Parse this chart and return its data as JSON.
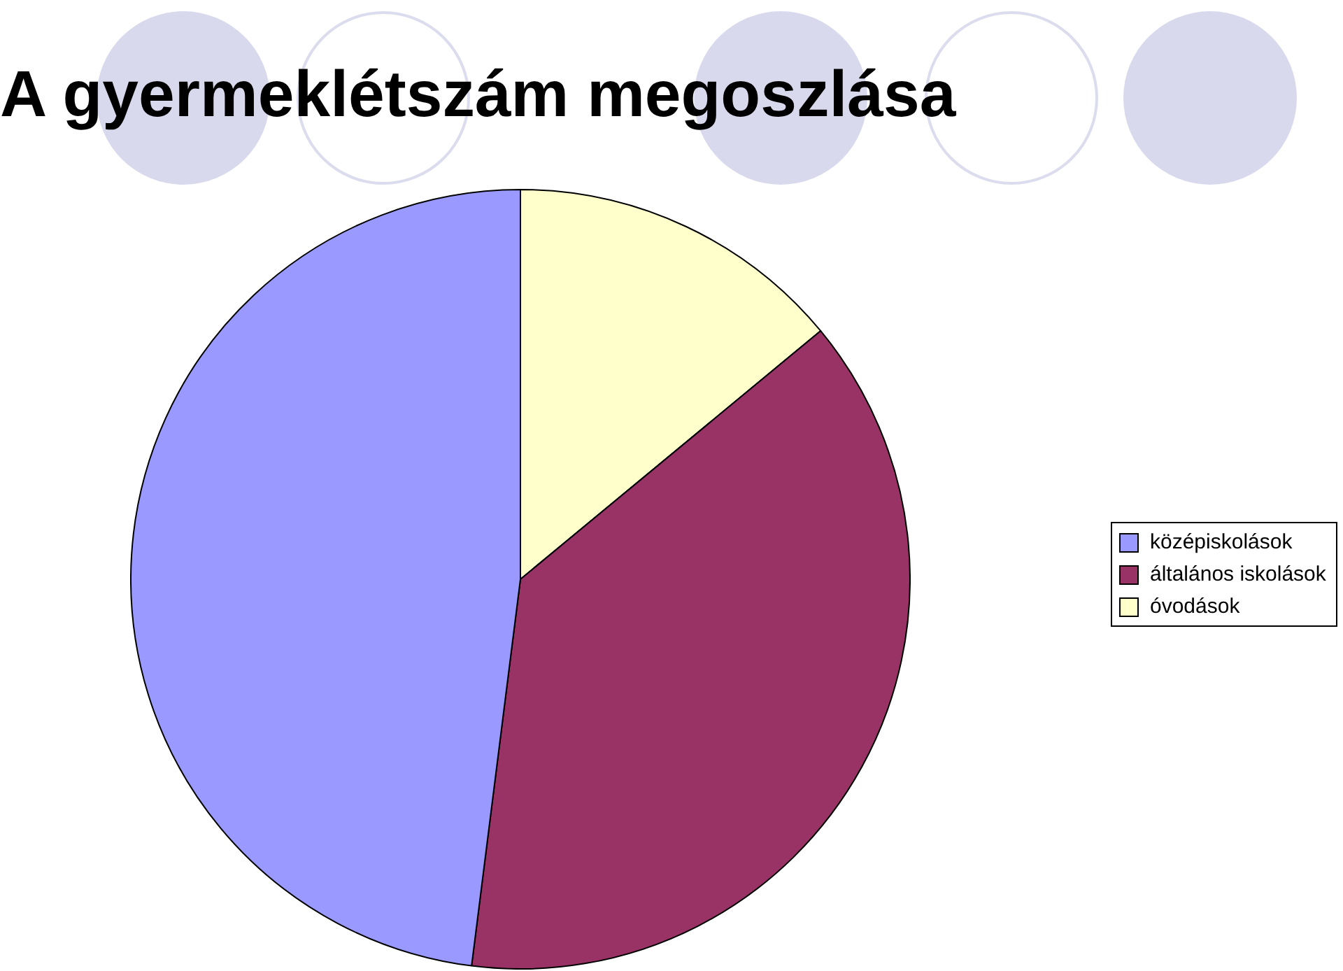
{
  "chart_data": {
    "type": "pie",
    "title": "A gyermeklétszám megoszlása",
    "categories": [
      "középiskolások",
      "általános iskolások",
      "óvodások"
    ],
    "values": [
      48,
      38,
      14
    ],
    "colors": [
      "#9999ff",
      "#993366",
      "#ffffcc"
    ],
    "legend": "right"
  }
}
